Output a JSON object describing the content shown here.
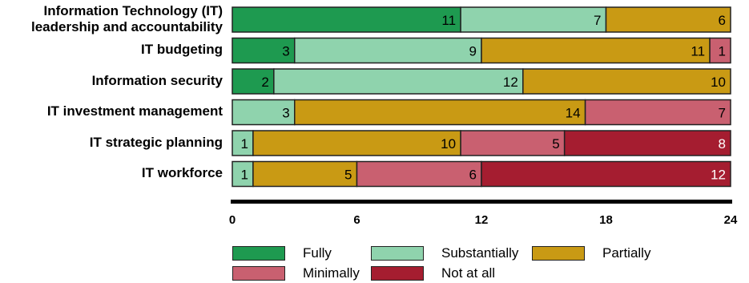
{
  "chart_data": {
    "type": "bar",
    "orientation": "horizontal",
    "stacked": true,
    "categories": [
      "Information Technology (IT)\nleadership and accountability",
      "IT budgeting",
      "Information security",
      "IT investment management",
      "IT strategic planning",
      "IT workforce"
    ],
    "series": [
      {
        "name": "Fully",
        "color": "#1e9a50",
        "values": [
          11,
          3,
          2,
          0,
          0,
          0
        ]
      },
      {
        "name": "Substantially",
        "color": "#8fd3ad",
        "values": [
          7,
          9,
          12,
          3,
          1,
          1
        ]
      },
      {
        "name": "Partially",
        "color": "#c99a14",
        "values": [
          6,
          11,
          10,
          14,
          10,
          5
        ]
      },
      {
        "name": "Minimally",
        "color": "#c96070",
        "values": [
          0,
          1,
          0,
          7,
          5,
          6
        ]
      },
      {
        "name": "Not at all",
        "color": "#a51d30",
        "values": [
          0,
          0,
          0,
          0,
          8,
          12
        ]
      }
    ],
    "xlim": [
      0,
      24
    ],
    "xticks": [
      "0",
      "6",
      "12",
      "18",
      "24"
    ],
    "legend_position": "bottom",
    "grid": false
  }
}
